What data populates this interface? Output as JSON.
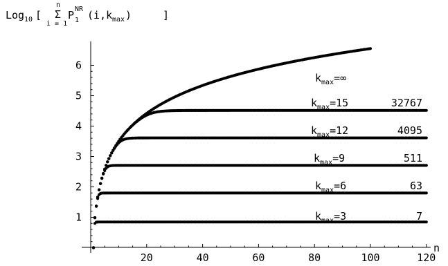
{
  "chart_data": {
    "type": "scatter",
    "title": {
      "prefix": "Log",
      "base": "10",
      "open": "[",
      "sum_symbol": "Σ",
      "sum_upper": "n",
      "sum_lower": "i = 1",
      "term": "P",
      "term_sub": "1",
      "term_sup": "NR",
      "args_open": "(i,k",
      "args_sub": "max",
      "args_close": ")",
      "close": "]"
    },
    "xlabel": "n",
    "ylabel": "",
    "xlim": [
      0,
      120
    ],
    "ylim": [
      -0.25,
      7.15
    ],
    "xticks": [
      20,
      40,
      60,
      80,
      100,
      120
    ],
    "yticks": [
      1,
      2,
      3,
      4,
      5,
      6
    ],
    "grid": false,
    "series": [
      {
        "kmax": "∞",
        "count": "",
        "x_max": 100,
        "plateau": null
      },
      {
        "kmax": "15",
        "count": "32767",
        "x_max": 120,
        "plateau": 4.5154
      },
      {
        "kmax": "12",
        "count": "4095",
        "x_max": 120,
        "plateau": 3.6122
      },
      {
        "kmax": "9",
        "count": "511",
        "x_max": 120,
        "plateau": 2.7084
      },
      {
        "kmax": "6",
        "count": "63",
        "x_max": 120,
        "plateau": 1.7993
      },
      {
        "kmax": "3",
        "count": "7",
        "x_max": 120,
        "plateau": 0.8451
      }
    ],
    "label_text": {
      "k": "k",
      "sub": "max",
      "eq": "="
    }
  }
}
